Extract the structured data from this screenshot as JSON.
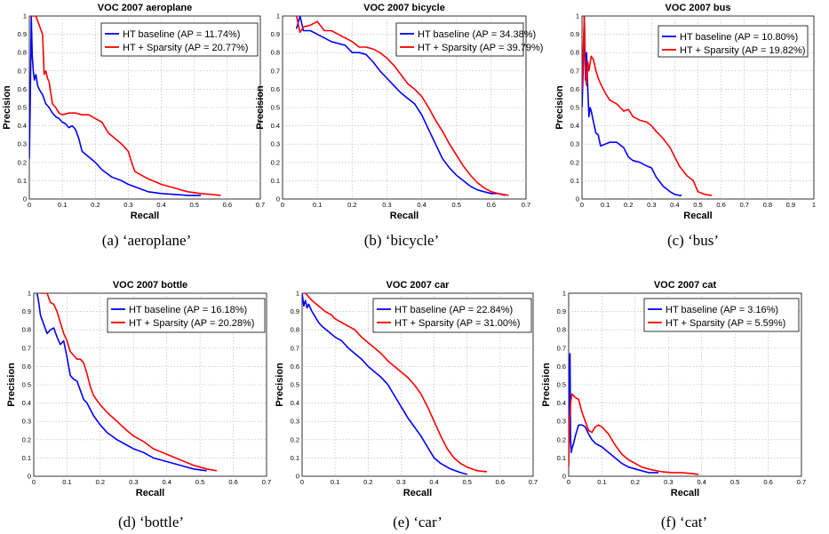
{
  "figure": {
    "captions": [
      "(a) ‘aeroplane’",
      "(b) ‘bicycle’",
      "(c) ‘bus’",
      "(d) ‘bottle’",
      "(e) ‘car’",
      "(f) ‘cat’"
    ],
    "colors": {
      "baseline": "#0000ff",
      "sparsity": "#ff0000",
      "grid": "#b0b0b0"
    }
  },
  "chart_data": [
    {
      "type": "line",
      "title": "VOC 2007 aeroplane",
      "xlabel": "Recall",
      "ylabel": "Precision",
      "xlim": [
        0,
        0.7
      ],
      "ylim": [
        0,
        1
      ],
      "xticks": [
        "0",
        "0.1",
        "0.2",
        "0.3",
        "0.4",
        "0.5",
        "0.6",
        "0.7"
      ],
      "yticks": [
        "0",
        "0.1",
        "0.2",
        "0.3",
        "0.4",
        "0.5",
        "0.6",
        "0.7",
        "0.8",
        "0.9",
        "1"
      ],
      "grid": true,
      "legend_position": "top-right",
      "series": [
        {
          "name": "HT baseline (AP = 11.74%)",
          "x": [
            0.0,
            0.003,
            0.006,
            0.009,
            0.012,
            0.015,
            0.02,
            0.025,
            0.03,
            0.04,
            0.05,
            0.06,
            0.07,
            0.08,
            0.09,
            0.1,
            0.11,
            0.12,
            0.13,
            0.14,
            0.15,
            0.16,
            0.18,
            0.2,
            0.22,
            0.25,
            0.28,
            0.3,
            0.33,
            0.36,
            0.4,
            0.44,
            0.48,
            0.52
          ],
          "y": [
            0.22,
            0.55,
            1.0,
            0.78,
            0.7,
            0.65,
            0.68,
            0.62,
            0.6,
            0.57,
            0.52,
            0.5,
            0.47,
            0.45,
            0.44,
            0.42,
            0.41,
            0.39,
            0.4,
            0.38,
            0.33,
            0.26,
            0.23,
            0.2,
            0.16,
            0.12,
            0.1,
            0.08,
            0.06,
            0.04,
            0.03,
            0.025,
            0.02,
            0.02
          ]
        },
        {
          "name": "HT + Sparsity (AP = 20.77%)",
          "x": [
            0.0,
            0.01,
            0.02,
            0.03,
            0.04,
            0.045,
            0.05,
            0.055,
            0.06,
            0.065,
            0.07,
            0.08,
            0.09,
            0.1,
            0.12,
            0.14,
            0.16,
            0.18,
            0.2,
            0.22,
            0.24,
            0.26,
            0.28,
            0.3,
            0.31,
            0.32,
            0.33,
            0.36,
            0.4,
            0.44,
            0.48,
            0.52,
            0.55,
            0.58
          ],
          "y": [
            1.0,
            1.0,
            1.0,
            0.95,
            0.9,
            0.68,
            0.7,
            0.66,
            0.64,
            0.58,
            0.52,
            0.5,
            0.47,
            0.46,
            0.47,
            0.47,
            0.46,
            0.46,
            0.44,
            0.42,
            0.36,
            0.33,
            0.3,
            0.26,
            0.2,
            0.15,
            0.14,
            0.11,
            0.08,
            0.06,
            0.04,
            0.03,
            0.025,
            0.02
          ]
        }
      ]
    },
    {
      "type": "line",
      "title": "VOC 2007 bicycle",
      "xlabel": "Recall",
      "ylabel": "Precision",
      "xlim": [
        0,
        0.7
      ],
      "ylim": [
        0,
        1
      ],
      "xticks": [
        "0",
        "0.1",
        "0.2",
        "0.3",
        "0.4",
        "0.5",
        "0.6",
        "0.7"
      ],
      "yticks": [
        "0",
        "0.1",
        "0.2",
        "0.3",
        "0.4",
        "0.5",
        "0.6",
        "0.7",
        "0.8",
        "0.9",
        "1"
      ],
      "grid": true,
      "legend_position": "top-right",
      "series": [
        {
          "name": "HT baseline (AP = 34.38%)",
          "x": [
            0.04,
            0.05,
            0.06,
            0.08,
            0.1,
            0.12,
            0.14,
            0.16,
            0.18,
            0.2,
            0.22,
            0.24,
            0.26,
            0.28,
            0.3,
            0.32,
            0.34,
            0.36,
            0.38,
            0.4,
            0.42,
            0.44,
            0.46,
            0.48,
            0.5,
            0.52,
            0.54,
            0.56,
            0.58,
            0.6,
            0.62,
            0.64
          ],
          "y": [
            0.93,
            1.0,
            0.92,
            0.92,
            0.9,
            0.88,
            0.86,
            0.85,
            0.84,
            0.8,
            0.8,
            0.79,
            0.75,
            0.7,
            0.66,
            0.62,
            0.58,
            0.55,
            0.52,
            0.46,
            0.38,
            0.3,
            0.22,
            0.17,
            0.13,
            0.1,
            0.07,
            0.05,
            0.04,
            0.03,
            0.03,
            0.02
          ]
        },
        {
          "name": "HT + Sparsity (AP = 39.79%)",
          "x": [
            0.04,
            0.05,
            0.06,
            0.08,
            0.1,
            0.12,
            0.14,
            0.16,
            0.18,
            0.2,
            0.22,
            0.24,
            0.26,
            0.28,
            0.3,
            0.32,
            0.34,
            0.36,
            0.38,
            0.4,
            0.42,
            0.44,
            0.46,
            0.48,
            0.5,
            0.52,
            0.54,
            0.56,
            0.58,
            0.6,
            0.62,
            0.65
          ],
          "y": [
            1.0,
            0.91,
            0.94,
            0.95,
            0.97,
            0.92,
            0.92,
            0.9,
            0.88,
            0.86,
            0.83,
            0.83,
            0.82,
            0.8,
            0.77,
            0.73,
            0.68,
            0.63,
            0.6,
            0.56,
            0.5,
            0.43,
            0.37,
            0.3,
            0.24,
            0.18,
            0.13,
            0.09,
            0.06,
            0.04,
            0.03,
            0.02
          ]
        }
      ]
    },
    {
      "type": "line",
      "title": "VOC 2007 bus",
      "xlabel": "Recall",
      "ylabel": "Precision",
      "xlim": [
        0,
        1.0
      ],
      "ylim": [
        0,
        1
      ],
      "xticks": [
        "0",
        "0.1",
        "0.2",
        "0.3",
        "0.4",
        "0.5",
        "0.6",
        "0.7",
        "0.8",
        "0.9",
        "1"
      ],
      "yticks": [
        "0",
        "0.1",
        "0.2",
        "0.3",
        "0.4",
        "0.5",
        "0.6",
        "0.7",
        "0.8",
        "0.9",
        "1"
      ],
      "grid": true,
      "legend_position": "top-right",
      "series": [
        {
          "name": "HT baseline (AP = 10.80%)",
          "x": [
            0.0,
            0.005,
            0.01,
            0.015,
            0.02,
            0.025,
            0.03,
            0.035,
            0.04,
            0.05,
            0.06,
            0.07,
            0.08,
            0.1,
            0.12,
            0.15,
            0.18,
            0.2,
            0.22,
            0.25,
            0.28,
            0.3,
            0.32,
            0.35,
            0.38,
            0.4,
            0.42,
            0.43
          ],
          "y": [
            0.5,
            0.7,
            1.0,
            0.65,
            0.8,
            0.6,
            0.45,
            0.5,
            0.48,
            0.42,
            0.36,
            0.35,
            0.29,
            0.3,
            0.31,
            0.31,
            0.28,
            0.23,
            0.21,
            0.2,
            0.18,
            0.17,
            0.12,
            0.07,
            0.04,
            0.025,
            0.02,
            0.02
          ]
        },
        {
          "name": "HT + Sparsity (AP = 19.82%)",
          "x": [
            0.0,
            0.005,
            0.01,
            0.015,
            0.02,
            0.025,
            0.03,
            0.035,
            0.04,
            0.05,
            0.06,
            0.07,
            0.08,
            0.1,
            0.12,
            0.15,
            0.18,
            0.2,
            0.22,
            0.25,
            0.28,
            0.3,
            0.32,
            0.35,
            0.38,
            0.4,
            0.42,
            0.45,
            0.48,
            0.5,
            0.53,
            0.56
          ],
          "y": [
            0.6,
            0.8,
            1.0,
            0.68,
            0.62,
            0.75,
            0.7,
            0.74,
            0.78,
            0.76,
            0.7,
            0.66,
            0.63,
            0.58,
            0.54,
            0.52,
            0.48,
            0.49,
            0.45,
            0.43,
            0.42,
            0.4,
            0.37,
            0.33,
            0.28,
            0.23,
            0.18,
            0.13,
            0.1,
            0.04,
            0.025,
            0.02
          ]
        }
      ]
    },
    {
      "type": "line",
      "title": "VOC 2007 bottle",
      "xlabel": "Recall",
      "ylabel": "Precision",
      "xlim": [
        0,
        0.7
      ],
      "ylim": [
        0,
        1
      ],
      "xticks": [
        "0",
        "0.1",
        "0.2",
        "0.3",
        "0.4",
        "0.5",
        "0.6",
        "0.7"
      ],
      "yticks": [
        "0",
        "0.1",
        "0.2",
        "0.3",
        "0.4",
        "0.5",
        "0.6",
        "0.7",
        "0.8",
        "0.9",
        "1"
      ],
      "grid": true,
      "legend_position": "top-right",
      "series": [
        {
          "name": "HT baseline (AP = 16.18%)",
          "x": [
            0.01,
            0.015,
            0.02,
            0.03,
            0.04,
            0.05,
            0.06,
            0.07,
            0.08,
            0.09,
            0.1,
            0.11,
            0.12,
            0.13,
            0.14,
            0.15,
            0.16,
            0.18,
            0.2,
            0.22,
            0.25,
            0.28,
            0.3,
            0.33,
            0.36,
            0.4,
            0.44,
            0.48,
            0.52
          ],
          "y": [
            1.0,
            0.95,
            0.88,
            0.83,
            0.78,
            0.8,
            0.81,
            0.76,
            0.72,
            0.74,
            0.65,
            0.55,
            0.53,
            0.52,
            0.47,
            0.42,
            0.4,
            0.33,
            0.28,
            0.24,
            0.2,
            0.17,
            0.15,
            0.13,
            0.1,
            0.08,
            0.06,
            0.04,
            0.03
          ]
        },
        {
          "name": "HT + Sparsity (AP = 20.28%)",
          "x": [
            0.02,
            0.04,
            0.05,
            0.06,
            0.07,
            0.08,
            0.09,
            0.1,
            0.11,
            0.12,
            0.13,
            0.14,
            0.15,
            0.16,
            0.17,
            0.18,
            0.2,
            0.22,
            0.25,
            0.28,
            0.3,
            0.33,
            0.36,
            0.4,
            0.44,
            0.48,
            0.52,
            0.55
          ],
          "y": [
            1.0,
            1.0,
            0.95,
            0.94,
            0.9,
            0.84,
            0.78,
            0.74,
            0.68,
            0.66,
            0.64,
            0.64,
            0.62,
            0.56,
            0.49,
            0.44,
            0.39,
            0.35,
            0.3,
            0.25,
            0.22,
            0.19,
            0.15,
            0.12,
            0.09,
            0.06,
            0.04,
            0.03
          ]
        }
      ]
    },
    {
      "type": "line",
      "title": "VOC 2007 car",
      "xlabel": "Recall",
      "ylabel": "Precision",
      "xlim": [
        0,
        0.7
      ],
      "ylim": [
        0,
        1
      ],
      "xticks": [
        "0",
        "0.1",
        "0.2",
        "0.3",
        "0.4",
        "0.5",
        "0.6",
        "0.7"
      ],
      "yticks": [
        "0",
        "0.1",
        "0.2",
        "0.3",
        "0.4",
        "0.5",
        "0.6",
        "0.7",
        "0.8",
        "0.9",
        "1"
      ],
      "grid": true,
      "legend_position": "top-right",
      "series": [
        {
          "name": "HT baseline (AP = 22.84%)",
          "x": [
            0.0,
            0.005,
            0.01,
            0.015,
            0.02,
            0.03,
            0.04,
            0.05,
            0.06,
            0.08,
            0.1,
            0.12,
            0.14,
            0.16,
            0.18,
            0.2,
            0.22,
            0.24,
            0.26,
            0.28,
            0.3,
            0.32,
            0.34,
            0.36,
            0.38,
            0.4,
            0.42,
            0.45,
            0.48,
            0.5
          ],
          "y": [
            1.0,
            0.93,
            0.96,
            0.92,
            0.94,
            0.9,
            0.87,
            0.84,
            0.82,
            0.79,
            0.76,
            0.74,
            0.7,
            0.67,
            0.64,
            0.6,
            0.57,
            0.54,
            0.5,
            0.44,
            0.38,
            0.32,
            0.27,
            0.22,
            0.16,
            0.1,
            0.07,
            0.04,
            0.02,
            0.01
          ]
        },
        {
          "name": "HT + Sparsity (AP = 31.00%)",
          "x": [
            0.0,
            0.01,
            0.02,
            0.03,
            0.05,
            0.07,
            0.09,
            0.1,
            0.12,
            0.14,
            0.16,
            0.18,
            0.2,
            0.22,
            0.24,
            0.26,
            0.28,
            0.3,
            0.32,
            0.34,
            0.36,
            0.38,
            0.4,
            0.42,
            0.44,
            0.46,
            0.48,
            0.5,
            0.53,
            0.56
          ],
          "y": [
            1.0,
            1.0,
            0.98,
            0.96,
            0.93,
            0.9,
            0.88,
            0.86,
            0.84,
            0.82,
            0.8,
            0.76,
            0.73,
            0.7,
            0.67,
            0.63,
            0.6,
            0.57,
            0.54,
            0.5,
            0.45,
            0.38,
            0.3,
            0.22,
            0.15,
            0.1,
            0.07,
            0.05,
            0.03,
            0.025
          ]
        }
      ]
    },
    {
      "type": "line",
      "title": "VOC 2007 cat",
      "xlabel": "Recall",
      "ylabel": "Precision",
      "xlim": [
        0,
        0.7
      ],
      "ylim": [
        0,
        1
      ],
      "xticks": [
        "0",
        "0.1",
        "0.2",
        "0.3",
        "0.4",
        "0.5",
        "0.6",
        "0.7"
      ],
      "yticks": [
        "0",
        "0.1",
        "0.2",
        "0.3",
        "0.4",
        "0.5",
        "0.6",
        "0.7",
        "0.8",
        "0.9",
        "1"
      ],
      "grid": true,
      "legend_position": "top-right",
      "series": [
        {
          "name": "HT baseline (AP = 3.16%)",
          "x": [
            0.0,
            0.002,
            0.004,
            0.006,
            0.008,
            0.01,
            0.015,
            0.02,
            0.03,
            0.04,
            0.05,
            0.06,
            0.07,
            0.08,
            0.1,
            0.12,
            0.14,
            0.16,
            0.18,
            0.2,
            0.22,
            0.24,
            0.26,
            0.27
          ],
          "y": [
            0.1,
            0.6,
            0.67,
            0.2,
            0.13,
            0.15,
            0.18,
            0.22,
            0.28,
            0.28,
            0.27,
            0.23,
            0.2,
            0.18,
            0.16,
            0.13,
            0.1,
            0.07,
            0.05,
            0.04,
            0.03,
            0.02,
            0.02,
            0.02
          ]
        },
        {
          "name": "HT + Sparsity (AP = 5.59%)",
          "x": [
            0.0,
            0.003,
            0.006,
            0.01,
            0.015,
            0.02,
            0.03,
            0.04,
            0.05,
            0.06,
            0.07,
            0.08,
            0.09,
            0.1,
            0.12,
            0.14,
            0.16,
            0.18,
            0.2,
            0.22,
            0.25,
            0.28,
            0.31,
            0.34,
            0.37,
            0.39
          ],
          "y": [
            0.05,
            0.3,
            0.4,
            0.45,
            0.44,
            0.43,
            0.42,
            0.35,
            0.3,
            0.25,
            0.24,
            0.27,
            0.28,
            0.27,
            0.23,
            0.17,
            0.12,
            0.09,
            0.07,
            0.05,
            0.035,
            0.025,
            0.02,
            0.02,
            0.015,
            0.01
          ]
        }
      ]
    }
  ]
}
